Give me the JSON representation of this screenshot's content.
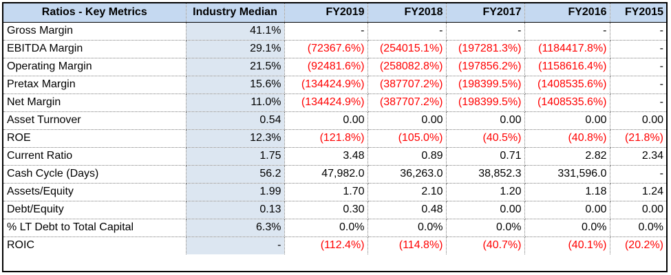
{
  "colors": {
    "header_bg": "#c5d9f1",
    "median_bg": "#dce6f1",
    "negative": "#ff0000"
  },
  "headers": [
    "Ratios - Key Metrics",
    "Industry Median",
    "FY2019",
    "FY2018",
    "FY2017",
    "FY2016",
    "FY2015"
  ],
  "rows": [
    {
      "metric": "Gross Margin",
      "median": "41.1%",
      "values": [
        "-",
        "-",
        "-",
        "-",
        "-"
      ]
    },
    {
      "metric": "EBITDA Margin",
      "median": "29.1%",
      "values": [
        "(72367.6%)",
        "(254015.1%)",
        "(197281.3%)",
        "(1184417.8%)",
        "-"
      ]
    },
    {
      "metric": "Operating Margin",
      "median": "21.5%",
      "values": [
        "(92481.6%)",
        "(258082.8%)",
        "(197856.2%)",
        "(1158616.4%)",
        "-"
      ]
    },
    {
      "metric": "Pretax Margin",
      "median": "15.6%",
      "values": [
        "(134424.9%)",
        "(387707.2%)",
        "(198399.5%)",
        "(1408535.6%)",
        "-"
      ]
    },
    {
      "metric": "Net Margin",
      "median": "11.0%",
      "values": [
        "(134424.9%)",
        "(387707.2%)",
        "(198399.5%)",
        "(1408535.6%)",
        "-"
      ]
    },
    {
      "metric": "Asset Turnover",
      "median": "0.54",
      "values": [
        "0.00",
        "0.00",
        "0.00",
        "0.00",
        "0.00"
      ]
    },
    {
      "metric": "ROE",
      "median": "12.3%",
      "values": [
        "(121.8%)",
        "(105.0%)",
        "(40.5%)",
        "(40.8%)",
        "(21.8%)"
      ]
    },
    {
      "metric": "Current Ratio",
      "median": "1.75",
      "values": [
        "3.48",
        "0.89",
        "0.71",
        "2.82",
        "2.34"
      ]
    },
    {
      "metric": "Cash Cycle (Days)",
      "median": "56.2",
      "values": [
        "47,982.0",
        "36,263.0",
        "38,852.3",
        "331,596.0",
        "-"
      ]
    },
    {
      "metric": "Assets/Equity",
      "median": "1.99",
      "values": [
        "1.70",
        "2.10",
        "1.20",
        "1.18",
        "1.24"
      ]
    },
    {
      "metric": "Debt/Equity",
      "median": "0.13",
      "values": [
        "0.30",
        "0.48",
        "0.00",
        "0.00",
        "0.00"
      ]
    },
    {
      "metric": "% LT Debt to Total Capital",
      "median": "6.3%",
      "values": [
        "0.0%",
        "0.0%",
        "0.0%",
        "0.0%",
        "0.0%"
      ]
    },
    {
      "metric": "ROIC",
      "median": "-",
      "values": [
        "(112.4%)",
        "(114.8%)",
        "(40.7%)",
        "(40.1%)",
        "(20.2%)"
      ]
    }
  ]
}
